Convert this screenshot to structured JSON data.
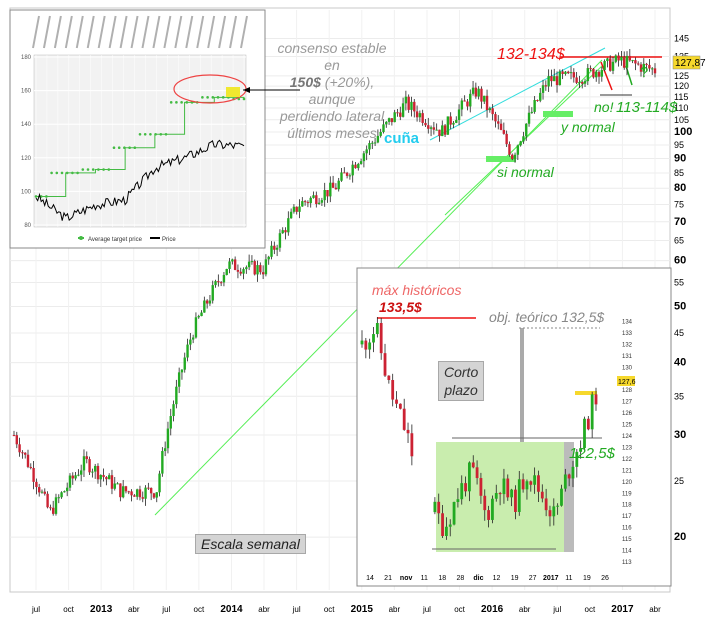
{
  "main": {
    "x_ticks": [
      "jul",
      "oct",
      "2013",
      "abr",
      "jul",
      "oct",
      "2014",
      "abr",
      "jul",
      "oct",
      "2015",
      "abr",
      "jul",
      "oct",
      "2016",
      "abr",
      "jul",
      "oct",
      "2017",
      "abr"
    ],
    "y_ticks": [
      "145",
      "135",
      "125",
      "120",
      "115",
      "110",
      "105",
      "100",
      "95",
      "90",
      "85",
      "80",
      "75",
      "70",
      "65",
      "60",
      "55",
      "50",
      "45",
      "40",
      "35",
      "30",
      "25",
      "20"
    ],
    "last_price": "127,87",
    "ann_consensus": [
      "consenso estable en",
      "150$",
      " (+20%), aunque",
      "perdiendo lateral",
      "últimos meses"
    ],
    "ann_range_top": "132-134$",
    "ann_question": "?",
    "ann_no": "no!",
    "ann_range_bottom": "113-114$",
    "ann_y_normal": "y normal",
    "ann_si_normal": "si normal",
    "ann_cuna": "cuña",
    "ann_escala": "Escala semanal"
  },
  "consensus_inset": {
    "legend": [
      "Average target price",
      "Price"
    ],
    "y_ticks": [
      "180",
      "160",
      "140",
      "120",
      "100",
      "80"
    ],
    "colors": {
      "target": "#44bb44",
      "price": "#000000",
      "highlight": "#ee4444"
    }
  },
  "short_inset": {
    "x_ticks": [
      "14",
      "21",
      "nov",
      "11",
      "18",
      "28",
      "dic",
      "12",
      "19",
      "27",
      "2017",
      "11",
      "19",
      "26"
    ],
    "y_ticks": [
      "134",
      "133",
      "132",
      "131",
      "130",
      "129",
      "128",
      "127",
      "126",
      "125",
      "124",
      "123",
      "122",
      "121",
      "120",
      "119",
      "118",
      "117",
      "116",
      "115",
      "114",
      "113"
    ],
    "ann_max": "máx históricos",
    "ann_max_value": "133,5$",
    "ann_obj": "obj. teórico 132,5$",
    "ann_corto": [
      "Corto",
      "plazo"
    ],
    "ann_level": "122,5$",
    "last_price": "127,6"
  },
  "chart_data": [
    {
      "type": "candlestick",
      "scale": "log",
      "ylim": [
        17,
        150
      ],
      "x": [
        "2012-07",
        "2012-10",
        "2013-01",
        "2013-04",
        "2013-07",
        "2013-10",
        "2014-01",
        "2014-04",
        "2014-07",
        "2014-10",
        "2015-01",
        "2015-04",
        "2015-07",
        "2015-10",
        "2016-01",
        "2016-04",
        "2016-07",
        "2016-10",
        "2017-01"
      ],
      "close": [
        30,
        22,
        27,
        24,
        24,
        45,
        59,
        58,
        75,
        80,
        95,
        112,
        100,
        118,
        91,
        123,
        125,
        133,
        127.87
      ]
    },
    {
      "type": "line",
      "series": [
        {
          "name": "Average target price",
          "values": [
            97,
            111,
            113,
            126,
            134,
            153,
            156,
            155
          ]
        },
        {
          "name": "Price",
          "values": [
            97,
            84,
            92,
            95,
            114,
            120,
            128,
            127
          ]
        }
      ],
      "ylim": [
        80,
        180
      ]
    },
    {
      "type": "candlestick",
      "ylim": [
        113,
        135
      ],
      "close": [
        132,
        133.5,
        128,
        125,
        121,
        118,
        116,
        119,
        121,
        117,
        120,
        118,
        121,
        119,
        117,
        121,
        124,
        127.6
      ]
    }
  ]
}
